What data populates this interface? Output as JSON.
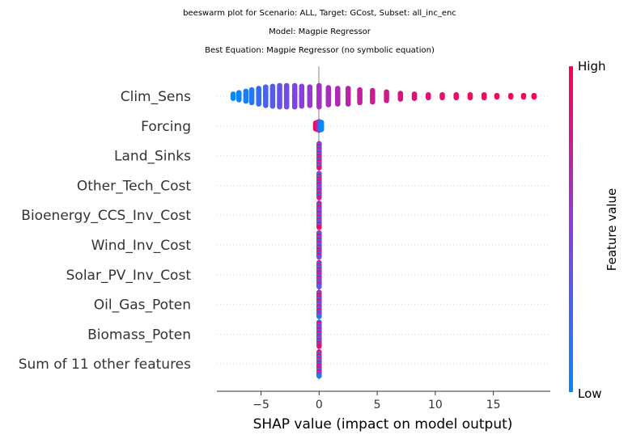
{
  "chart_data": {
    "type": "scatter",
    "subtype": "beeswarm",
    "title_lines": [
      "beeswarm plot for Scenario: ALL, Target: GCost, Subset: all_inc_enc",
      "Model: Magpie Regressor",
      "Best Equation: Magpie Regressor (no symbolic equation)"
    ],
    "xlabel": "SHAP value (impact on model output)",
    "xlim": [
      -8.8,
      19.9
    ],
    "xticks": [
      -5,
      0,
      5,
      10,
      15
    ],
    "xtick_labels": [
      "−5",
      "0",
      "5",
      "10",
      "15"
    ],
    "features": [
      "Clim_Sens",
      "Forcing",
      "Land_Sinks",
      "Other_Tech_Cost",
      "Bioenergy_CCS_Inv_Cost",
      "Wind_Inv_Cost",
      "Solar_PV_Inv_Cost",
      "Oil_Gas_Poten",
      "Biomass_Poten",
      "Sum of 11 other features"
    ],
    "clim_sens_columns": [
      {
        "x": -7.4,
        "count": 4,
        "color": 0.0
      },
      {
        "x": -6.9,
        "count": 6,
        "color": 0.05
      },
      {
        "x": -6.3,
        "count": 8,
        "color": 0.1
      },
      {
        "x": -5.8,
        "count": 10,
        "color": 0.14
      },
      {
        "x": -5.2,
        "count": 12,
        "color": 0.2
      },
      {
        "x": -4.6,
        "count": 14,
        "color": 0.26
      },
      {
        "x": -4.0,
        "count": 15,
        "color": 0.31
      },
      {
        "x": -3.4,
        "count": 16,
        "color": 0.36
      },
      {
        "x": -2.8,
        "count": 16,
        "color": 0.41
      },
      {
        "x": -2.1,
        "count": 16,
        "color": 0.46
      },
      {
        "x": -1.5,
        "count": 15,
        "color": 0.5
      },
      {
        "x": -0.8,
        "count": 14,
        "color": 0.55
      },
      {
        "x": 0.0,
        "count": 16,
        "color": 0.6
      },
      {
        "x": 0.8,
        "count": 13,
        "color": 0.63
      },
      {
        "x": 1.6,
        "count": 12,
        "color": 0.66
      },
      {
        "x": 2.5,
        "count": 12,
        "color": 0.7
      },
      {
        "x": 3.5,
        "count": 10,
        "color": 0.73
      },
      {
        "x": 4.6,
        "count": 9,
        "color": 0.77
      },
      {
        "x": 5.8,
        "count": 7,
        "color": 0.8
      },
      {
        "x": 7.0,
        "count": 5,
        "color": 0.83
      },
      {
        "x": 8.2,
        "count": 4,
        "color": 0.86
      },
      {
        "x": 9.4,
        "count": 3,
        "color": 0.88
      },
      {
        "x": 10.6,
        "count": 3,
        "color": 0.9
      },
      {
        "x": 11.8,
        "count": 3,
        "color": 0.92
      },
      {
        "x": 13.0,
        "count": 3,
        "color": 0.94
      },
      {
        "x": 14.2,
        "count": 3,
        "color": 0.95
      },
      {
        "x": 15.3,
        "count": 2,
        "color": 0.96
      },
      {
        "x": 16.5,
        "count": 2,
        "color": 0.97
      },
      {
        "x": 17.6,
        "count": 2,
        "color": 0.98
      },
      {
        "x": 18.5,
        "count": 2,
        "color": 1.0
      }
    ],
    "forcing_points": [
      {
        "x": -0.3,
        "color": 1.0
      },
      {
        "x": -0.15,
        "color": 0.85
      },
      {
        "x": 0.0,
        "color": 0.6
      },
      {
        "x": 0.1,
        "color": 0.3
      },
      {
        "x": 0.2,
        "color": 0.0
      }
    ],
    "colorbar": {
      "label": "Feature value",
      "high": "High",
      "low": "Low",
      "low_color": "#008bfb",
      "mid_color": "#8a3ee0",
      "high_color": "#ff0052"
    },
    "grid": "dotted horizontal per feature",
    "zero_line_color": "#999999"
  }
}
